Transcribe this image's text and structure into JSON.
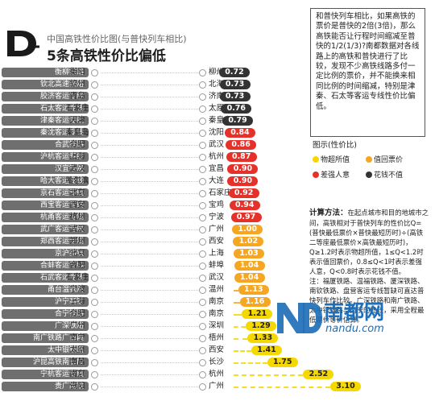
{
  "header": {
    "subtitle": "中国高铁性价比图(与普快列车相比)",
    "title": "5条高铁性价比偏低"
  },
  "note": "和普快列车相比，如果高铁的票价是普快的2倍(3倍)，那么高铁能否让行程时间缩减至普快的1/2(1/3)?南都数据对各线路上的高铁和普快进行了比较，发现不少高铁线路多付一定比例的票价，并不能换来相同比例的时间缩减，特别是津秦、石太等客运专线性价比偏低。",
  "legend": {
    "title": "图示(性价比)",
    "items": [
      {
        "label": "物超所值",
        "color": "#f5d800"
      },
      {
        "label": "值回票价",
        "color": "#f5a623"
      },
      {
        "label": "差强人意",
        "color": "#e6312a"
      },
      {
        "label": "花钱不值",
        "color": "#333333"
      }
    ]
  },
  "calc": {
    "heading": "计算方法：",
    "body": "在起点城市和目的地城市之间，高铁相对于普快列车的性价比Q=(普快最低票价×普快最短历时)÷(高铁二等座最低票价×高铁最短历时)，Q≥1.2时表示物超所值，1≤Q<1.2时表示值回票价，0.8≤Q<1时表示差强人意，Q<0.8时表示花钱不值。",
    "note": "注：福厦铁路、温福铁路、厦深铁路、南钦铁路、盘营客运专线暂缺可直达普快列车作比较。广深铁路和南广铁路、太中银铁路与南宁的比较，采用全程最低票价等价估算。"
  },
  "watermark": {
    "brand": "南都网",
    "url": "nandu.com"
  },
  "rows": [
    {
      "name": "衡柳铁路",
      "from": "衡阳",
      "to": "柳州",
      "value": "0.72",
      "color": "#333333"
    },
    {
      "name": "钦北高速铁路",
      "from": "钦州",
      "to": "北海",
      "value": "0.73",
      "color": "#333333"
    },
    {
      "name": "胶济客运专线",
      "from": "青岛",
      "to": "济南",
      "value": "0.73",
      "color": "#333333"
    },
    {
      "name": "石太客运专线",
      "from": "石家庄",
      "to": "太原",
      "value": "0.76",
      "color": "#333333"
    },
    {
      "name": "津秦客运专线",
      "from": "天津",
      "to": "秦皇岛",
      "value": "0.79",
      "color": "#333333"
    },
    {
      "name": "秦沈客运专线",
      "from": "秦皇岛",
      "to": "沈阳",
      "value": "0.84",
      "color": "#e6312a"
    },
    {
      "name": "合武铁路",
      "from": "合肥",
      "to": "武汉",
      "value": "0.86",
      "color": "#e6312a"
    },
    {
      "name": "沪杭客运专线",
      "from": "上海",
      "to": "杭州",
      "value": "0.87",
      "color": "#e6312a"
    },
    {
      "name": "汉宜铁路",
      "from": "武汉",
      "to": "宜昌",
      "value": "0.90",
      "color": "#e6312a"
    },
    {
      "name": "哈大客运专线",
      "from": "哈尔滨",
      "to": "大连",
      "value": "0.90",
      "color": "#e6312a"
    },
    {
      "name": "京石客运专线",
      "from": "北京",
      "to": "石家庄",
      "value": "0.92",
      "color": "#e6312a"
    },
    {
      "name": "西宝客运专线",
      "from": "西安",
      "to": "宝鸡",
      "value": "0.94",
      "color": "#e6312a"
    },
    {
      "name": "杭甬客运专线",
      "from": "杭州",
      "to": "宁波",
      "value": "0.97",
      "color": "#e6312a"
    },
    {
      "name": "武广客运专线",
      "from": "武汉",
      "to": "广州",
      "value": "1.00",
      "color": "#f5a623"
    },
    {
      "name": "郑西客运专线",
      "from": "郑州",
      "to": "西安",
      "value": "1.02",
      "color": "#f5a623"
    },
    {
      "name": "京沪高铁",
      "from": "北京",
      "to": "上海",
      "value": "1.03",
      "color": "#f5a623"
    },
    {
      "name": "合蚌客运专线",
      "from": "合肥",
      "to": "蚌埠",
      "value": "1.04",
      "color": "#f5a623"
    },
    {
      "name": "石武客运专线",
      "from": "石家庄",
      "to": "武汉",
      "value": "1.04",
      "color": "#f5a623"
    },
    {
      "name": "甬台温铁路",
      "from": "宁波",
      "to": "温州",
      "value": "1.13",
      "color": "#f5a623"
    },
    {
      "name": "沪宁高铁",
      "from": "上海",
      "to": "南京",
      "value": "1.16",
      "color": "#f5a623"
    },
    {
      "name": "合宁铁路",
      "from": "合肥",
      "to": "南京",
      "value": "1.21",
      "color": "#f5d800"
    },
    {
      "name": "广深铁路",
      "from": "广州",
      "to": "深圳",
      "value": "1.29",
      "color": "#f5d800"
    },
    {
      "name": "南广铁路广西段",
      "from": "南宁",
      "to": "梧州",
      "value": "1.33",
      "color": "#f5d800"
    },
    {
      "name": "太中银铁路",
      "from": "太原",
      "to": "西安",
      "value": "1.41",
      "color": "#f5d800"
    },
    {
      "name": "沪昆高铁南长段",
      "from": "南昌",
      "to": "长沙",
      "value": "1.75",
      "color": "#f5d800"
    },
    {
      "name": "宁杭客运专线",
      "from": "南京",
      "to": "杭州",
      "value": "2.52",
      "color": "#f5d800"
    },
    {
      "name": "贵广高铁",
      "from": "贵阳",
      "to": "广州",
      "value": "3.10",
      "color": "#f5d800"
    }
  ]
}
